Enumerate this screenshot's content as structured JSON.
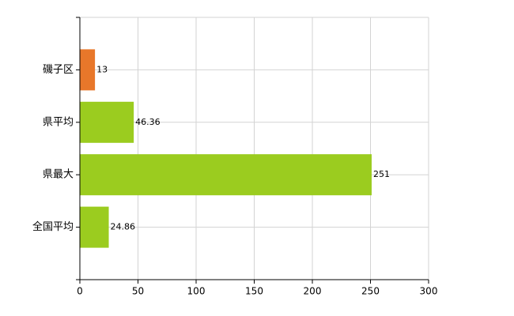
{
  "chart_data": {
    "type": "barh",
    "categories": [
      "磯子区",
      "県平均",
      "県最大",
      "全国平均"
    ],
    "values": [
      13,
      46.36,
      251,
      24.86
    ],
    "colors": [
      "#e8772a",
      "#9bcc1f",
      "#9bcc1f",
      "#9bcc1f"
    ],
    "xlim": [
      0,
      300
    ],
    "xticks": [
      0,
      50,
      100,
      150,
      200,
      250,
      300
    ],
    "grid": true
  }
}
